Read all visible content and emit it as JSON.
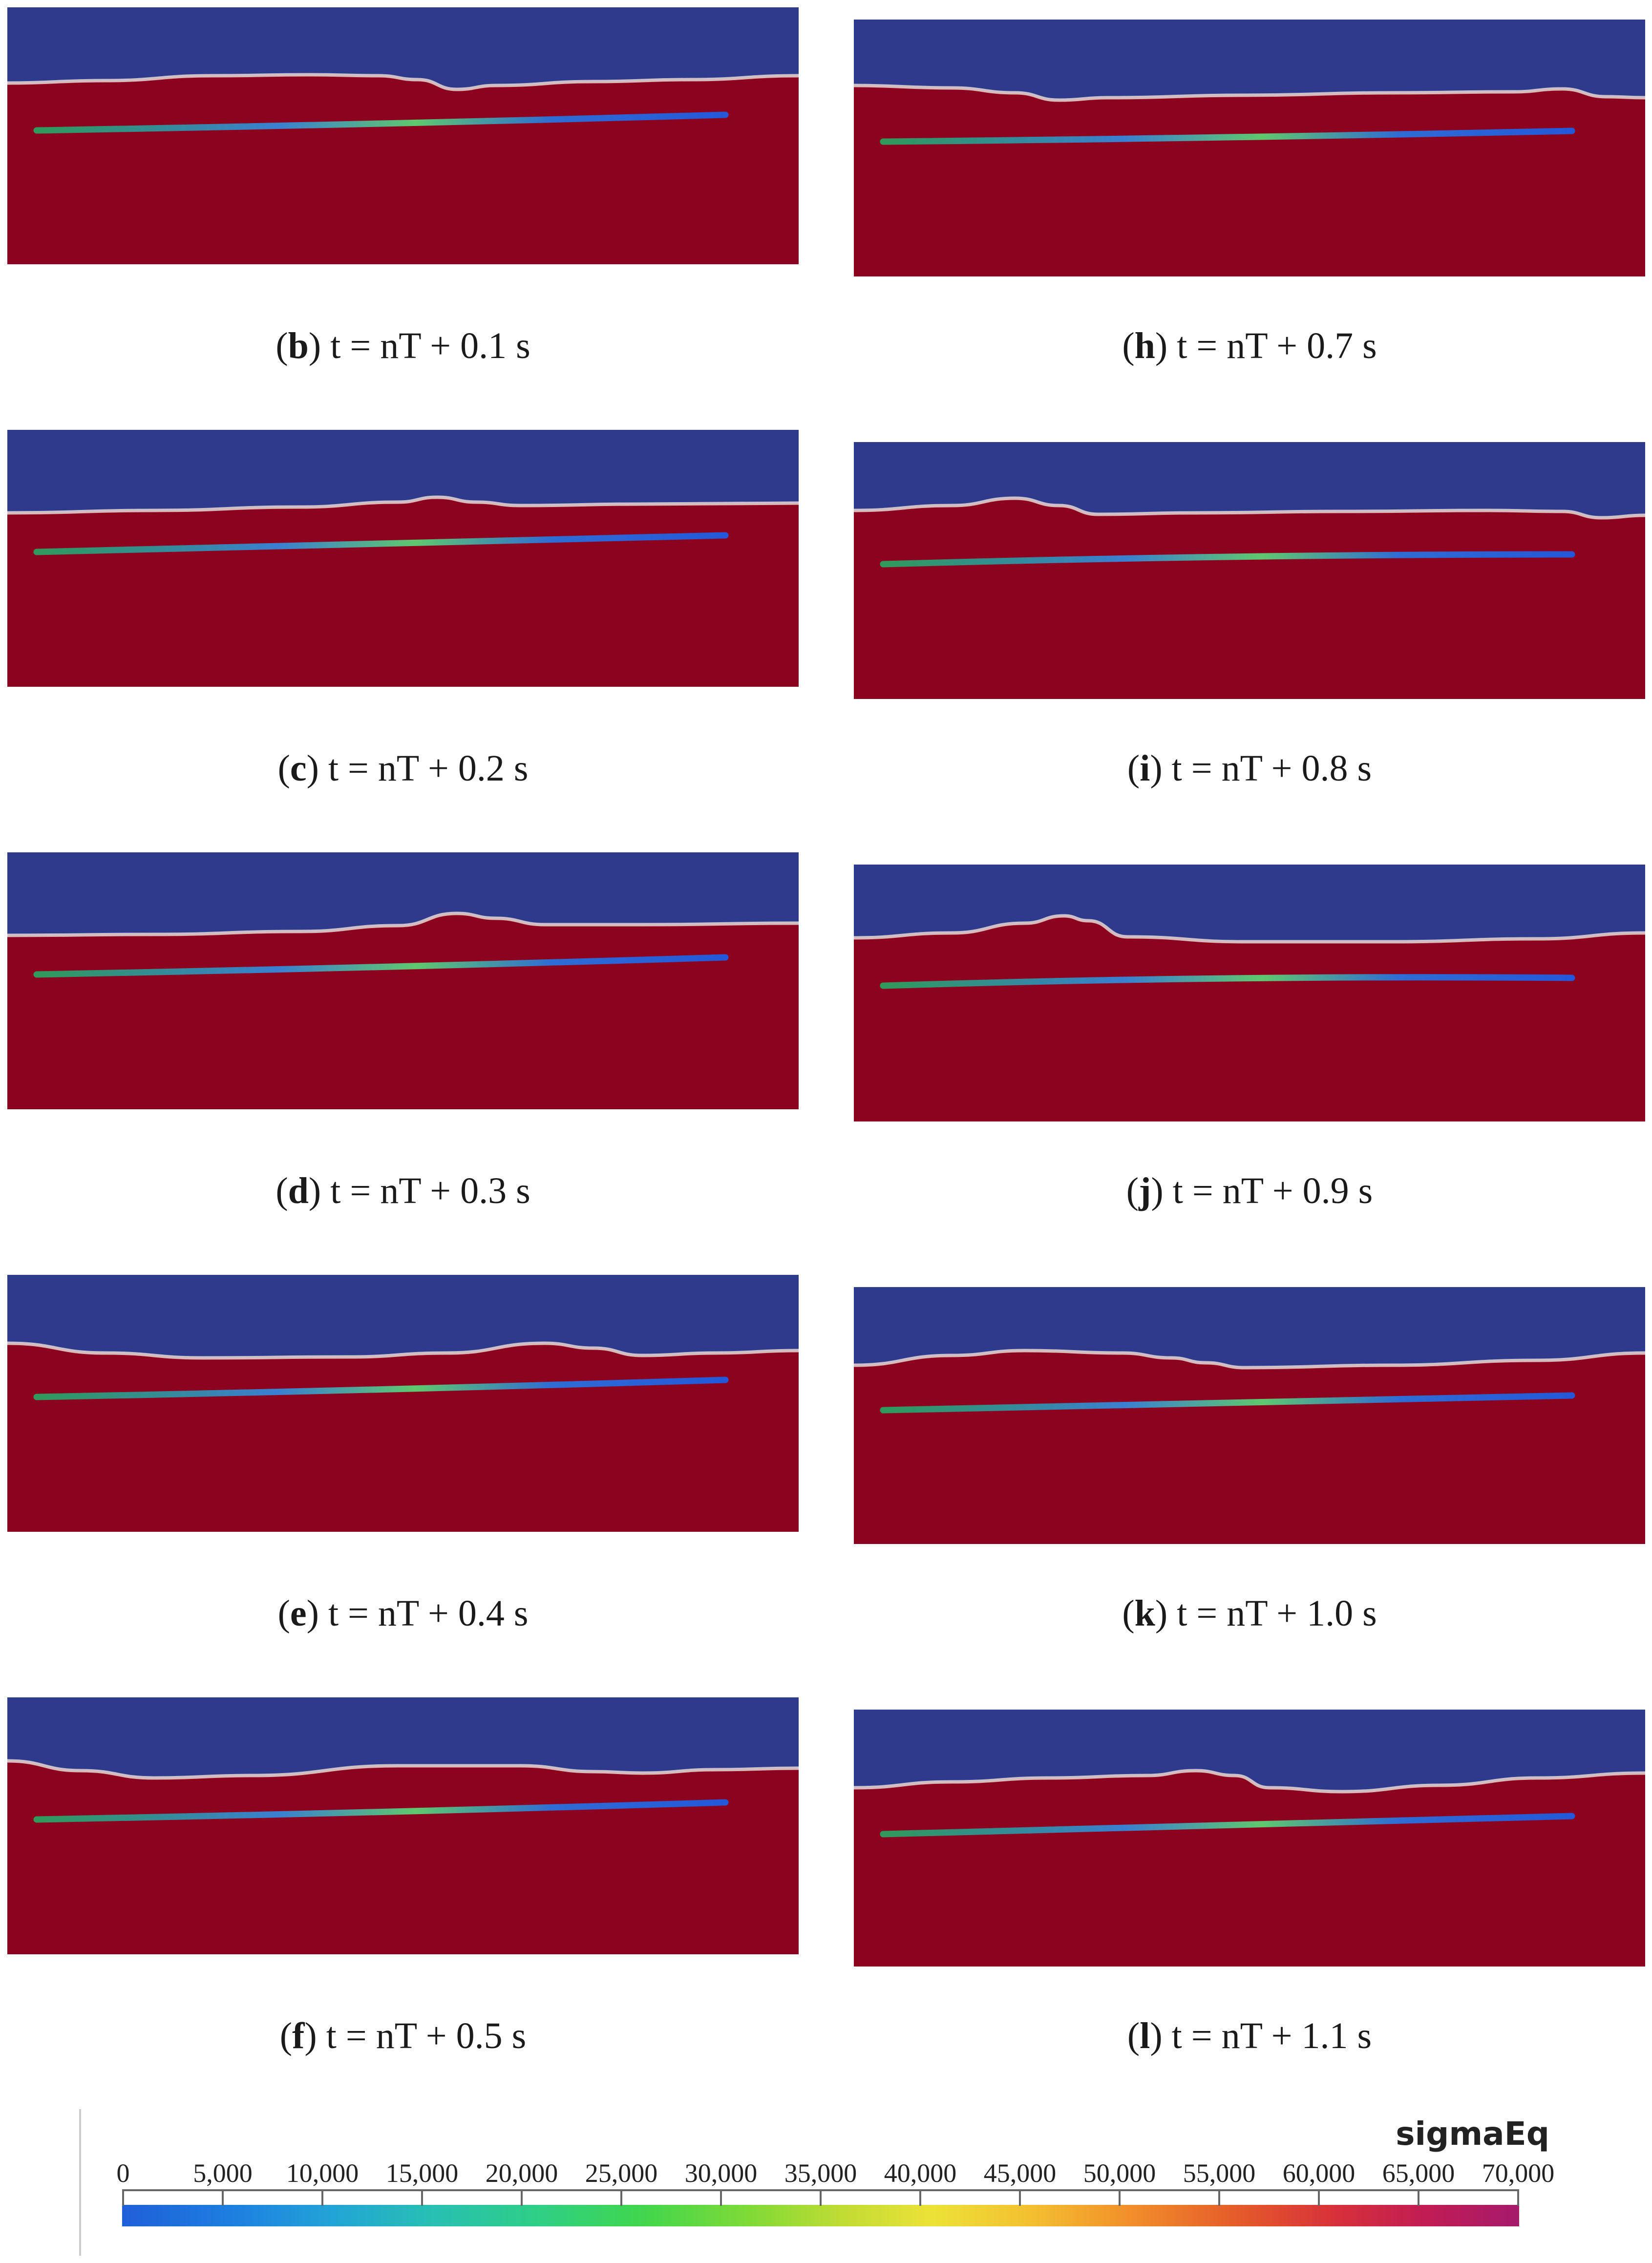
{
  "panels": [
    {
      "id": "b",
      "label": "b",
      "caption": "t = nT + 0.1 s"
    },
    {
      "id": "h",
      "label": "h",
      "caption": "t = nT + 0.7 s"
    },
    {
      "id": "c",
      "label": "c",
      "caption": "t = nT + 0.2 s"
    },
    {
      "id": "i",
      "label": "i",
      "caption": "t = nT + 0.8 s"
    },
    {
      "id": "d",
      "label": "d",
      "caption": "t = nT + 0.3 s"
    },
    {
      "id": "j",
      "label": "j",
      "caption": "t = nT + 0.9 s"
    },
    {
      "id": "e",
      "label": "e",
      "caption": "t = nT + 0.4 s"
    },
    {
      "id": "k",
      "label": "k",
      "caption": "t = nT + 1.0 s"
    },
    {
      "id": "f",
      "label": "f",
      "caption": "t = nT + 0.5 s"
    },
    {
      "id": "l",
      "label": "l",
      "caption": "t = nT + 1.1 s"
    }
  ],
  "colorbar": {
    "title": "sigmaEq",
    "ticks": [
      "0",
      "5,000",
      "10,000",
      "15,000",
      "20,000",
      "25,000",
      "30,000",
      "35,000",
      "40,000",
      "45,000",
      "50,000",
      "55,000",
      "60,000",
      "65,000",
      "70,000"
    ],
    "min": 0,
    "max": 70000
  },
  "colors": {
    "air": "#2e3a8c",
    "water": "#8c0320",
    "interface": "#e8d9d6"
  }
}
